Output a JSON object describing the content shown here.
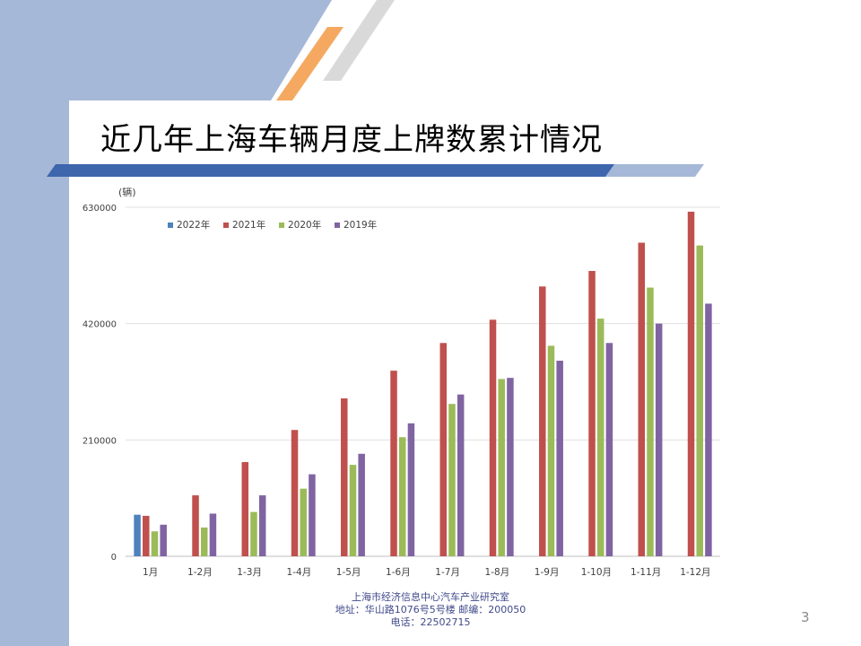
{
  "slide": {
    "title": "近几年上海车辆月度上牌数累计情况",
    "page_number": "3",
    "footer": {
      "line1": "上海市经济信息中心汽车产业研究室",
      "line2": "地址：华山路1076号5号楼   邮编：200050",
      "line3": "电话：22502715"
    }
  },
  "colors": {
    "left_band": "#a6b8d7",
    "accent_orange": "#f5a960",
    "rule_blue": "#3d66ad",
    "2022": "#4f81bd",
    "2021": "#c0504d",
    "2020": "#9bbb59",
    "2019": "#8064a2"
  },
  "chart_data": {
    "type": "bar",
    "unit_label": "(辆)",
    "categories": [
      "1月",
      "1-2月",
      "1-3月",
      "1-4月",
      "1-5月",
      "1-6月",
      "1-7月",
      "1-8月",
      "1-9月",
      "1-10月",
      "1-11月",
      "1-12月"
    ],
    "series": [
      {
        "name": "2022年",
        "values": [
          75000,
          null,
          null,
          null,
          null,
          null,
          null,
          null,
          null,
          null,
          null,
          null
        ]
      },
      {
        "name": "2021年",
        "values": [
          73000,
          110000,
          170000,
          228000,
          285000,
          335000,
          385000,
          427000,
          487000,
          515000,
          566000,
          622000
        ]
      },
      {
        "name": "2020年",
        "values": [
          45000,
          52000,
          80000,
          122000,
          165000,
          215000,
          275000,
          320000,
          380000,
          429000,
          485000,
          561000
        ]
      },
      {
        "name": "2019年",
        "values": [
          57000,
          77000,
          110000,
          148000,
          185000,
          240000,
          292000,
          322000,
          353000,
          385000,
          420000,
          456000
        ]
      }
    ],
    "y_ticks": [
      0,
      210000,
      420000,
      630000
    ],
    "ylim": [
      0,
      630000
    ],
    "grid": true,
    "legend_position": "top-left"
  }
}
